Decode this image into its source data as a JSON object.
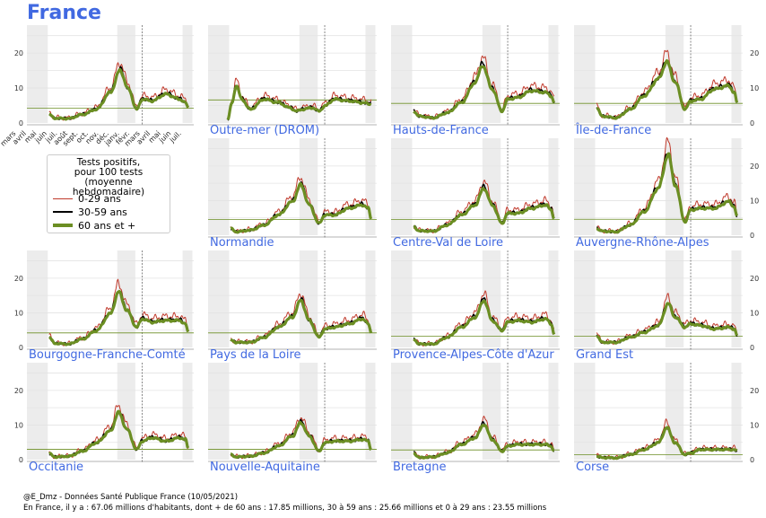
{
  "title": "France",
  "legend": {
    "title_lines": [
      "Tests positifs,",
      "pour 100 tests",
      "(moyenne hebdomadaire)"
    ],
    "items": [
      {
        "label": "0-29 ans",
        "color": "#c0392b"
      },
      {
        "label": "30-59 ans",
        "color": "#000000"
      },
      {
        "label": "60 ans et +",
        "color": "#6b8e23"
      }
    ]
  },
  "footer": {
    "source": "@E_Dmz - Données Santé Publique France (10/05/2021)",
    "population": "En France, il y a : 67.06 millions d'habitants, dont + de 60 ans : 17.85 millions, 30 à 59 ans : 25.66 millions et 0 à 29 ans : 23.55 millions"
  },
  "chart_data": {
    "type": "line",
    "ylim": [
      0,
      28
    ],
    "yticks": [
      0,
      10,
      20
    ],
    "x_tick_labels": [
      "mars",
      "avril",
      "mai",
      "juin",
      "juil.",
      "août",
      "sept.",
      "oct.",
      "nov.",
      "déc.",
      "janv.",
      "févr.",
      "mars",
      "avril",
      "mai",
      "juin",
      "juil."
    ],
    "shaded_periods": [
      [
        0,
        1.5
      ],
      [
        6.5,
        7.8
      ],
      [
        11.2,
        11.9
      ]
    ],
    "vline_x": 8.3,
    "series_names": [
      "0-29 ans",
      "30-59 ans",
      "60 ans et +"
    ],
    "panels": [
      {
        "name": "France",
        "show_label": false,
        "ref": 4.2,
        "keys": [
          [
            1.6,
            2.5
          ],
          [
            2,
            1.4
          ],
          [
            3,
            1.3
          ],
          [
            4,
            2.5
          ],
          [
            5,
            4
          ],
          [
            6,
            9
          ],
          [
            6.7,
            15.5
          ],
          [
            7.3,
            10
          ],
          [
            7.9,
            4
          ],
          [
            8.3,
            7
          ],
          [
            9,
            6.5
          ],
          [
            10,
            8.5
          ],
          [
            11,
            7
          ],
          [
            11.4,
            6
          ],
          [
            11.6,
            4.5
          ]
        ]
      },
      {
        "name": "Outre-mer (DROM)",
        "show_label": true,
        "ref": 6.6,
        "keys": [
          [
            1.4,
            1
          ],
          [
            1.7,
            6
          ],
          [
            2,
            11
          ],
          [
            2.4,
            7
          ],
          [
            3,
            4
          ],
          [
            4,
            7
          ],
          [
            5,
            6
          ],
          [
            5.8,
            4.5
          ],
          [
            6.3,
            3.5
          ],
          [
            6.7,
            4
          ],
          [
            7.4,
            4.5
          ],
          [
            7.9,
            3.5
          ],
          [
            8.3,
            5
          ],
          [
            9,
            7
          ],
          [
            10,
            6.5
          ],
          [
            11,
            6
          ],
          [
            11.6,
            5.5
          ]
        ]
      },
      {
        "name": "Hauts-de-France",
        "show_label": true,
        "ref": 5.6,
        "keys": [
          [
            1.6,
            3.5
          ],
          [
            2,
            2
          ],
          [
            3,
            1.5
          ],
          [
            4,
            3
          ],
          [
            5,
            6
          ],
          [
            6,
            12
          ],
          [
            6.5,
            17
          ],
          [
            7.2,
            10
          ],
          [
            7.9,
            3.5
          ],
          [
            8.3,
            7
          ],
          [
            9,
            7.5
          ],
          [
            10,
            9.5
          ],
          [
            11,
            9
          ],
          [
            11.4,
            8
          ],
          [
            11.6,
            6
          ]
        ]
      },
      {
        "name": "Île-de-France",
        "show_label": true,
        "ref": 5.6,
        "keys": [
          [
            1.6,
            4.5
          ],
          [
            2,
            2
          ],
          [
            3,
            1.5
          ],
          [
            4,
            4
          ],
          [
            5,
            8
          ],
          [
            6,
            13
          ],
          [
            6.6,
            18
          ],
          [
            7.2,
            12
          ],
          [
            7.9,
            4
          ],
          [
            8.3,
            6.5
          ],
          [
            9,
            7
          ],
          [
            10,
            10
          ],
          [
            11,
            11
          ],
          [
            11.4,
            9
          ],
          [
            11.6,
            6
          ]
        ]
      },
      {
        "name": "Normandie",
        "show_label": true,
        "ref": 4.5,
        "keys": [
          [
            1.6,
            2
          ],
          [
            2,
            1
          ],
          [
            3,
            1.5
          ],
          [
            4,
            3
          ],
          [
            5,
            6
          ],
          [
            6,
            10
          ],
          [
            6.6,
            15
          ],
          [
            7.2,
            9
          ],
          [
            7.9,
            3.5
          ],
          [
            8.3,
            6
          ],
          [
            9,
            6
          ],
          [
            10,
            8
          ],
          [
            11,
            9
          ],
          [
            11.4,
            8
          ],
          [
            11.6,
            5
          ]
        ]
      },
      {
        "name": "Centre-Val de Loire",
        "show_label": true,
        "ref": 4.5,
        "keys": [
          [
            1.6,
            2.5
          ],
          [
            2,
            1.3
          ],
          [
            3,
            1.2
          ],
          [
            4,
            3
          ],
          [
            5,
            6
          ],
          [
            6,
            9
          ],
          [
            6.6,
            14
          ],
          [
            7.2,
            9
          ],
          [
            7.9,
            3.5
          ],
          [
            8.3,
            6.5
          ],
          [
            9,
            6.5
          ],
          [
            10,
            8
          ],
          [
            11,
            9
          ],
          [
            11.4,
            7.5
          ],
          [
            11.6,
            5
          ]
        ]
      },
      {
        "name": "Auvergne-Rhône-Alpes",
        "show_label": true,
        "ref": 4.6,
        "keys": [
          [
            1.6,
            2
          ],
          [
            2,
            1.2
          ],
          [
            3,
            1
          ],
          [
            4,
            3
          ],
          [
            5,
            7
          ],
          [
            6,
            14
          ],
          [
            6.7,
            24
          ],
          [
            7.2,
            15
          ],
          [
            7.9,
            4
          ],
          [
            8.3,
            7.5
          ],
          [
            9,
            8
          ],
          [
            10,
            8
          ],
          [
            11,
            10
          ],
          [
            11.4,
            8.5
          ],
          [
            11.6,
            5.5
          ]
        ]
      },
      {
        "name": "Bourgogne-Franche-Comté",
        "show_label": true,
        "ref": 4.2,
        "keys": [
          [
            1.6,
            3
          ],
          [
            2,
            1.2
          ],
          [
            3,
            1
          ],
          [
            4,
            2.5
          ],
          [
            5,
            5
          ],
          [
            6,
            10
          ],
          [
            6.6,
            16.5
          ],
          [
            7.2,
            11
          ],
          [
            7.9,
            6
          ],
          [
            8.3,
            8.5
          ],
          [
            9,
            7.5
          ],
          [
            10,
            8
          ],
          [
            11,
            8
          ],
          [
            11.4,
            7
          ],
          [
            11.6,
            4.5
          ]
        ]
      },
      {
        "name": "Pays de la Loire",
        "show_label": true,
        "ref": 4.2,
        "keys": [
          [
            1.6,
            2.2
          ],
          [
            2,
            1.5
          ],
          [
            3,
            1.5
          ],
          [
            4,
            3
          ],
          [
            5,
            6
          ],
          [
            6,
            9
          ],
          [
            6.6,
            14
          ],
          [
            7.2,
            8
          ],
          [
            7.9,
            3
          ],
          [
            8.3,
            5.5
          ],
          [
            9,
            6
          ],
          [
            10,
            7
          ],
          [
            11,
            8.5
          ],
          [
            11.4,
            7
          ],
          [
            11.6,
            4.5
          ]
        ]
      },
      {
        "name": "Provence-Alpes-Côte d'Azur",
        "show_label": true,
        "ref": 3.2,
        "keys": [
          [
            1.6,
            2.5
          ],
          [
            2,
            1
          ],
          [
            3,
            1
          ],
          [
            4,
            3
          ],
          [
            5,
            6
          ],
          [
            6,
            9
          ],
          [
            6.6,
            14
          ],
          [
            7.2,
            8
          ],
          [
            7.9,
            5
          ],
          [
            8.3,
            7.5
          ],
          [
            9,
            8
          ],
          [
            10,
            7.5
          ],
          [
            11,
            8.5
          ],
          [
            11.4,
            7
          ],
          [
            11.6,
            4
          ]
        ]
      },
      {
        "name": "Grand Est",
        "show_label": true,
        "ref": 3.2,
        "keys": [
          [
            1.6,
            3.5
          ],
          [
            2,
            1.5
          ],
          [
            3,
            1.5
          ],
          [
            4,
            3
          ],
          [
            5,
            4.5
          ],
          [
            6,
            6.5
          ],
          [
            6.7,
            13
          ],
          [
            7.2,
            9
          ],
          [
            7.9,
            6
          ],
          [
            8.3,
            7
          ],
          [
            9,
            6.5
          ],
          [
            10,
            5.5
          ],
          [
            11,
            6
          ],
          [
            11.4,
            5.5
          ],
          [
            11.6,
            3.5
          ]
        ]
      },
      {
        "name": "Occitanie",
        "show_label": true,
        "ref": 3.0,
        "keys": [
          [
            1.6,
            1.8
          ],
          [
            2,
            0.8
          ],
          [
            3,
            1
          ],
          [
            4,
            2.5
          ],
          [
            5,
            5
          ],
          [
            6,
            8.5
          ],
          [
            6.6,
            14
          ],
          [
            7.2,
            9
          ],
          [
            7.9,
            3
          ],
          [
            8.3,
            5.5
          ],
          [
            9,
            6.5
          ],
          [
            10,
            5.5
          ],
          [
            11,
            6.5
          ],
          [
            11.4,
            6
          ],
          [
            11.6,
            3.5
          ]
        ]
      },
      {
        "name": "Nouvelle-Aquitaine",
        "show_label": true,
        "ref": 3.0,
        "keys": [
          [
            1.6,
            1.5
          ],
          [
            2,
            0.8
          ],
          [
            3,
            1
          ],
          [
            4,
            2
          ],
          [
            5,
            4
          ],
          [
            6,
            7
          ],
          [
            6.6,
            11
          ],
          [
            7.2,
            7
          ],
          [
            7.9,
            2.5
          ],
          [
            8.3,
            5
          ],
          [
            9,
            5.5
          ],
          [
            10,
            5.5
          ],
          [
            11,
            6
          ],
          [
            11.4,
            5.5
          ],
          [
            11.6,
            3
          ]
        ]
      },
      {
        "name": "Bretagne",
        "show_label": true,
        "ref": 2.8,
        "keys": [
          [
            1.6,
            2
          ],
          [
            2,
            0.6
          ],
          [
            3,
            0.8
          ],
          [
            4,
            2
          ],
          [
            5,
            4.5
          ],
          [
            6,
            6.5
          ],
          [
            6.6,
            10.5
          ],
          [
            7.2,
            6
          ],
          [
            7.9,
            2.5
          ],
          [
            8.3,
            4
          ],
          [
            9,
            4.5
          ],
          [
            10,
            4.5
          ],
          [
            11,
            4.5
          ],
          [
            11.4,
            4
          ],
          [
            11.6,
            2.5
          ]
        ]
      },
      {
        "name": "Corse",
        "show_label": true,
        "ref": 1.4,
        "keys": [
          [
            1.6,
            1
          ],
          [
            2,
            0.6
          ],
          [
            3,
            0.5
          ],
          [
            4,
            1.5
          ],
          [
            5,
            3
          ],
          [
            6,
            5
          ],
          [
            6.6,
            9.5
          ],
          [
            7.2,
            5
          ],
          [
            7.9,
            1.5
          ],
          [
            8.3,
            2
          ],
          [
            9,
            3
          ],
          [
            10,
            3
          ],
          [
            11,
            3
          ],
          [
            11.4,
            3
          ],
          [
            11.6,
            2.5
          ]
        ]
      }
    ]
  }
}
